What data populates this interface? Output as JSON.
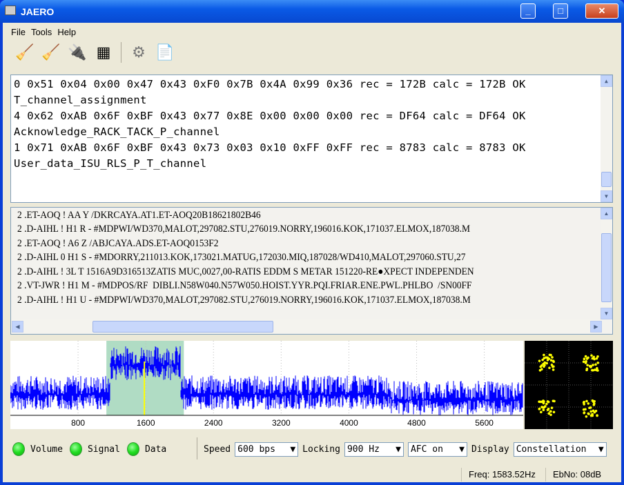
{
  "window": {
    "title": "JAERO",
    "minimize": "_",
    "maximize": "□",
    "close": "✕"
  },
  "menu": [
    "File",
    "Tools",
    "Help"
  ],
  "toolbar": [
    {
      "icon": "broom-icon",
      "glyph": "🧹"
    },
    {
      "icon": "broom-icon",
      "glyph": "🧹"
    },
    {
      "icon": "connector-icon",
      "glyph": "🔌"
    },
    {
      "icon": "binary-icon",
      "glyph": "▦"
    },
    {
      "icon": "gear-icon",
      "glyph": "⚙"
    },
    {
      "icon": "log-file-icon",
      "glyph": "📄"
    }
  ],
  "output_top": [
    "0 0x51 0x04 0x00 0x47 0x43 0xF0 0x7B 0x4A 0x99 0x36 rec = 172B calc = 172B OK",
    "T_channel_assignment",
    "4 0x62 0xAB 0x6F 0xBF 0x43 0x77 0x8E 0x00 0x00 0x00 rec = DF64 calc = DF64 OK",
    "Acknowledge_RACK_TACK_P_channel",
    "1 0x71 0xAB 0x6F 0xBF 0x43 0x73 0x03 0x10 0xFF 0xFF rec = 8783 calc = 8783 OK",
    "User_data_ISU_RLS_P_T_channel"
  ],
  "output_bottom": [
    "2 .ET-AOQ ! AA Y /DKRCAYA.AT1.ET-AOQ20B18621802B46",
    "2 .D-AIHL ! H1 R - #MDPWI/WD370,MALOT,297082.STU,276019.NORRY,196016.KOK,171037.ELMOX,187038.M",
    "2 .ET-AOQ ! A6 Z /ABJCAYA.ADS.ET-AOQ0153F2",
    "2 .D-AIHL 0 H1 S - #MDORRY,211013.KOK,173021.MATUG,172030.MIQ,187028/WD410,MALOT,297060.STU,27",
    "2 .D-AIHL ! 3L T 1516A9D316513ZATIS MUC,0027,00-RATIS EDDM S METAR 151220-RE●XPECT INDEPENDEN",
    "2 .VT-JWR ! H1 M - #MDPOS/RF  DIBLI.N58W040.N57W050.HOIST.YYR.PQI.FRIAR.ENE.PWL.PHLBO  /SN00FF",
    "2 .D-AIHL ! H1 U - #MDPWI/WD370,MALOT,297082.STU,276019.NORRY,196016.KOK,171037.ELMOX,187038.M"
  ],
  "spectrum": {
    "ticks": [
      "800",
      "1600",
      "2400",
      "3200",
      "4000",
      "4800",
      "5600"
    ],
    "tick_values": [
      800,
      1600,
      2400,
      3200,
      4000,
      4800,
      5600
    ],
    "max_hz": 6060,
    "passband_hz": [
      1135,
      2050
    ],
    "center_hz": 1583.52,
    "trace_color": "#0000ff",
    "passband_color": "#b0dcc4"
  },
  "constellation": {
    "point_color": "#ffff00"
  },
  "controls": {
    "indicators": [
      "Volume",
      "Signal",
      "Data"
    ],
    "speed_label": "Speed",
    "speed": "600 bps",
    "locking_label": "Locking",
    "locking": "900 Hz",
    "afc": "AFC on",
    "display_label": "Display",
    "display": "Constellation"
  },
  "status": {
    "freq": "Freq: 1583.52Hz",
    "ebno": "EbNo: 08dB"
  }
}
